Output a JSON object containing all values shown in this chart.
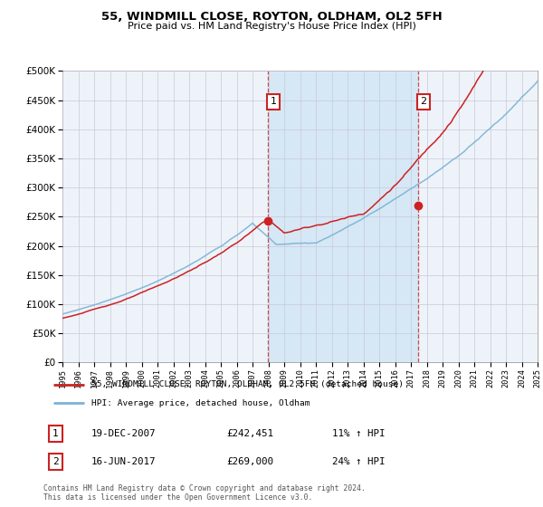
{
  "title": "55, WINDMILL CLOSE, ROYTON, OLDHAM, OL2 5FH",
  "subtitle": "Price paid vs. HM Land Registry's House Price Index (HPI)",
  "legend_line1": "55, WINDMILL CLOSE, ROYTON, OLDHAM, OL2 5FH (detached house)",
  "legend_line2": "HPI: Average price, detached house, Oldham",
  "annotation1_date": "19-DEC-2007",
  "annotation1_price": "£242,451",
  "annotation1_hpi": "11% ↑ HPI",
  "annotation2_date": "16-JUN-2017",
  "annotation2_price": "£269,000",
  "annotation2_hpi": "24% ↑ HPI",
  "footer": "Contains HM Land Registry data © Crown copyright and database right 2024.\nThis data is licensed under the Open Government Licence v3.0.",
  "sale1_year": 2007.96,
  "sale1_value": 242451,
  "sale2_year": 2017.46,
  "sale2_value": 269000,
  "hpi_color": "#7ab3d4",
  "price_color": "#cc2222",
  "vline_color": "#cc2222",
  "shade_color": "#d6e8f5",
  "annotation_box_color": "#cc2222",
  "ylim_min": 0,
  "ylim_max": 500000,
  "xlim_min": 1995,
  "xlim_max": 2025,
  "background_chart": "#eef3fa",
  "background_fig": "#ffffff"
}
